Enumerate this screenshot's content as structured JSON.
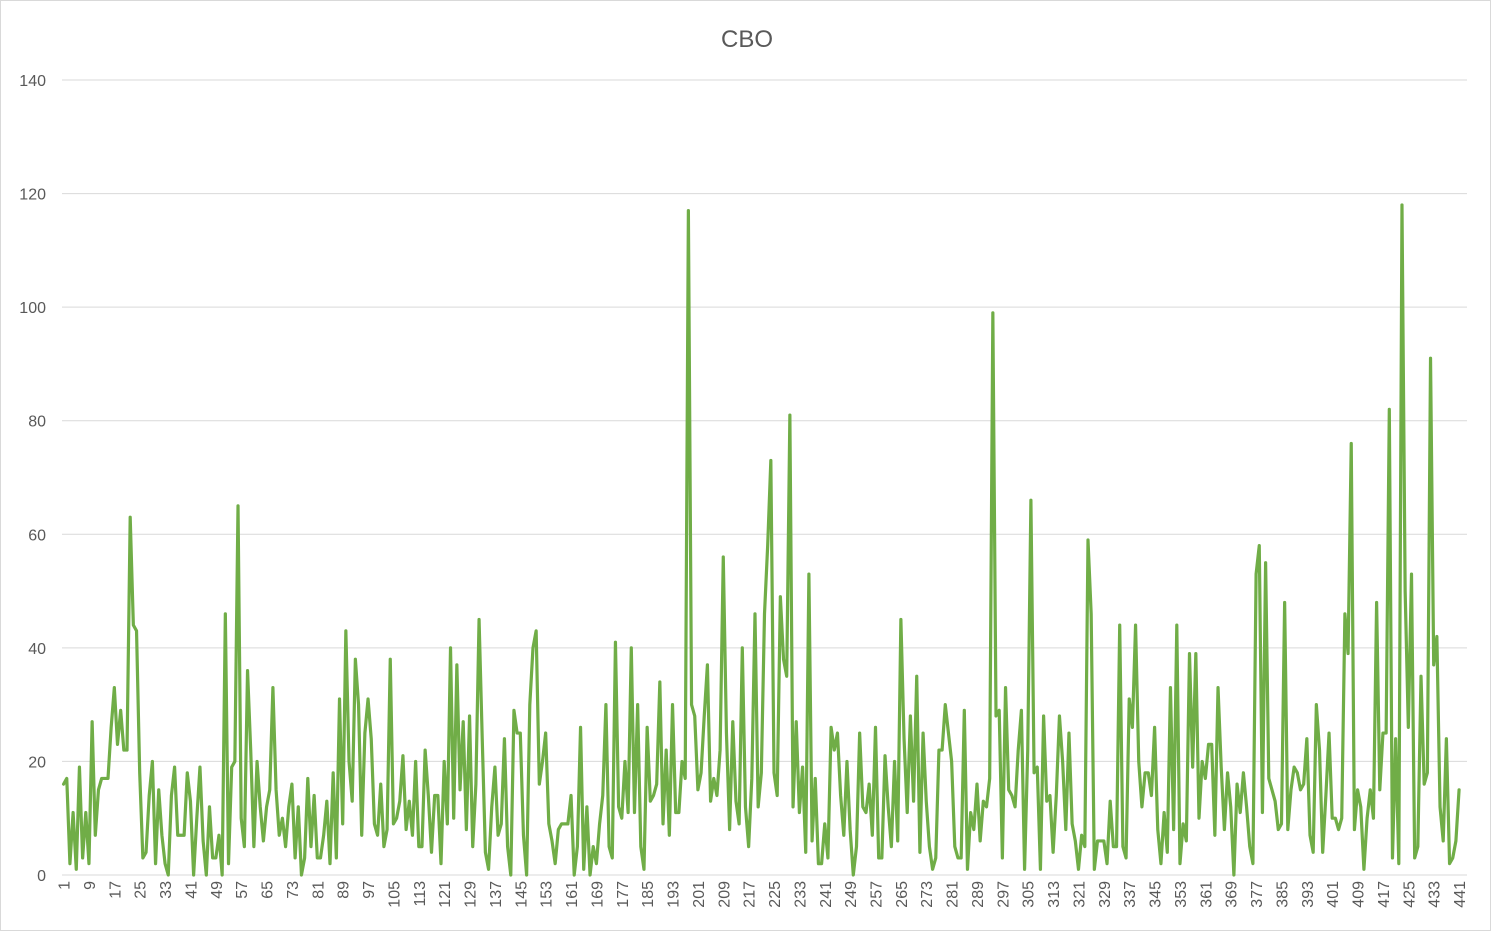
{
  "chart_data": {
    "type": "line",
    "title": "CBO",
    "xlabel": "",
    "ylabel": "",
    "ylim": [
      0,
      140
    ],
    "yticks": [
      0,
      20,
      40,
      60,
      80,
      100,
      120,
      140
    ],
    "x_start": 1,
    "x_end": 443,
    "xtick_step": 8,
    "xticks": [
      1,
      9,
      17,
      25,
      33,
      41,
      49,
      57,
      65,
      73,
      81,
      89,
      97,
      105,
      113,
      121,
      129,
      137,
      145,
      153,
      161,
      169,
      177,
      185,
      193,
      201,
      209,
      217,
      225,
      233,
      241,
      249,
      257,
      265,
      273,
      281,
      289,
      297,
      305,
      313,
      321,
      329,
      337,
      345,
      353,
      361,
      369,
      377,
      385,
      393,
      401,
      409,
      417,
      425,
      433,
      441
    ],
    "grid": "horizontal",
    "legend": "none",
    "colors": {
      "line": "#70ad47",
      "grid": "#d9d9d9",
      "text": "#595959"
    },
    "series": [
      {
        "values": [
          16,
          17,
          2,
          11,
          1,
          19,
          3,
          11,
          2,
          27,
          7,
          15,
          17,
          17,
          17,
          26,
          33,
          23,
          29,
          22,
          22,
          63,
          44,
          43,
          18,
          3,
          4,
          14,
          20,
          2,
          15,
          7,
          2,
          0,
          14,
          19,
          7,
          7,
          7,
          18,
          13,
          0,
          10,
          19,
          6,
          0,
          12,
          3,
          3,
          7,
          0,
          46,
          2,
          19,
          20,
          65,
          10,
          5,
          36,
          22,
          5,
          20,
          12,
          6,
          12,
          15,
          33,
          15,
          7,
          10,
          5,
          12,
          16,
          3,
          12,
          0,
          3,
          17,
          5,
          14,
          3,
          3,
          7,
          13,
          2,
          18,
          3,
          31,
          9,
          43,
          20,
          13,
          38,
          30,
          7,
          25,
          31,
          24,
          9,
          7,
          16,
          5,
          8,
          38,
          9,
          10,
          13,
          21,
          8,
          13,
          7,
          20,
          5,
          5,
          22,
          14,
          4,
          14,
          14,
          2,
          20,
          9,
          40,
          10,
          37,
          15,
          27,
          8,
          28,
          5,
          16,
          45,
          24,
          4,
          1,
          12,
          19,
          7,
          9,
          24,
          5,
          0,
          29,
          25,
          25,
          7,
          0,
          30,
          40,
          43,
          16,
          20,
          25,
          9,
          6,
          2,
          8,
          9,
          9,
          9,
          14,
          0,
          5,
          26,
          1,
          12,
          0,
          5,
          2,
          9,
          14,
          30,
          5,
          3,
          41,
          12,
          10,
          20,
          11,
          40,
          11,
          30,
          5,
          1,
          26,
          13,
          14,
          16,
          34,
          9,
          22,
          7,
          30,
          11,
          11,
          20,
          17,
          117,
          30,
          28,
          15,
          18,
          28,
          37,
          13,
          17,
          14,
          22,
          56,
          25,
          8,
          27,
          13,
          9,
          40,
          12,
          5,
          17,
          46,
          12,
          18,
          46,
          58,
          73,
          18,
          14,
          49,
          38,
          35,
          81,
          12,
          27,
          11,
          19,
          4,
          53,
          6,
          17,
          2,
          2,
          9,
          3,
          26,
          22,
          25,
          14,
          7,
          20,
          8,
          0,
          5,
          25,
          12,
          11,
          16,
          7,
          26,
          3,
          3,
          21,
          12,
          5,
          20,
          6,
          45,
          24,
          11,
          28,
          13,
          35,
          4,
          25,
          13,
          5,
          1,
          3,
          22,
          22,
          30,
          25,
          20,
          5,
          3,
          3,
          29,
          1,
          11,
          8,
          16,
          6,
          13,
          12,
          17,
          99,
          28,
          29,
          3,
          33,
          15,
          14,
          12,
          22,
          29,
          1,
          22,
          66,
          18,
          19,
          1,
          28,
          13,
          14,
          4,
          14,
          28,
          20,
          8,
          25,
          9,
          6,
          1,
          7,
          5,
          59,
          46,
          1,
          6,
          6,
          6,
          2,
          13,
          5,
          5,
          44,
          5,
          3,
          31,
          26,
          44,
          20,
          12,
          18,
          18,
          14,
          26,
          8,
          2,
          11,
          4,
          33,
          8,
          44,
          2,
          9,
          6,
          39,
          19,
          39,
          10,
          20,
          17,
          23,
          23,
          7,
          33,
          19,
          8,
          18,
          12,
          0,
          16,
          11,
          18,
          12,
          5,
          2,
          53,
          58,
          11,
          55,
          17,
          15,
          13,
          8,
          9,
          48,
          8,
          15,
          19,
          18,
          15,
          16,
          24,
          7,
          4,
          30,
          22,
          4,
          14,
          25,
          10,
          10,
          8,
          10,
          46,
          39,
          76,
          8,
          15,
          12,
          1,
          10,
          15,
          10,
          48,
          15,
          25,
          25,
          82,
          3,
          24,
          2,
          118,
          50,
          26,
          53,
          3,
          5,
          35,
          16,
          18,
          91,
          37,
          42,
          12,
          6,
          24,
          2,
          3,
          6,
          15
        ]
      }
    ]
  }
}
